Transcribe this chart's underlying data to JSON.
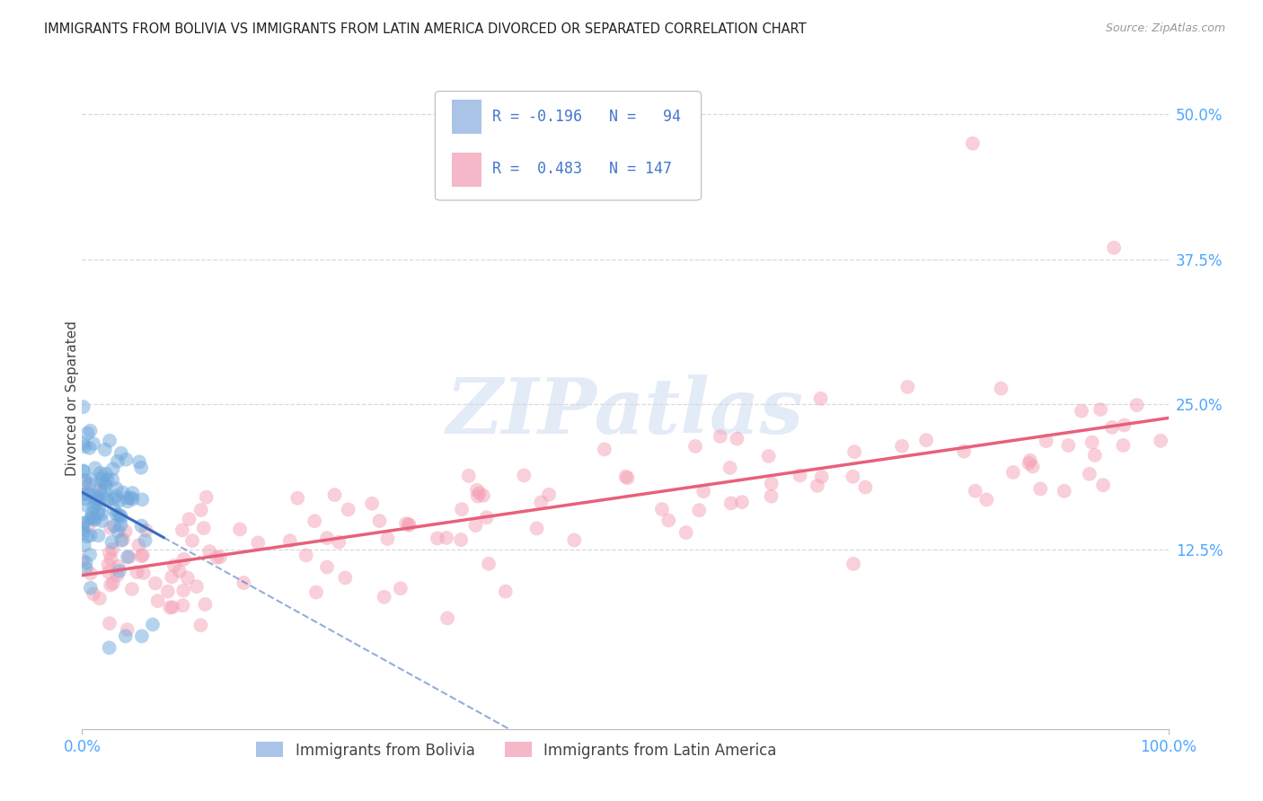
{
  "title": "IMMIGRANTS FROM BOLIVIA VS IMMIGRANTS FROM LATIN AMERICA DIVORCED OR SEPARATED CORRELATION CHART",
  "source": "Source: ZipAtlas.com",
  "ylabel": "Divorced or Separated",
  "series1_color": "#6fa8dc",
  "series2_color": "#f4a0b5",
  "legend1_color": "#aac4e8",
  "legend2_color": "#f4b8c8",
  "trendline1_color": "#3a6bbf",
  "trendline2_color": "#e8607a",
  "watermark_color": "#c8d8f0",
  "background": "#ffffff",
  "grid_color": "#d0d0d0",
  "xlim": [
    0.0,
    1.0
  ],
  "ylim": [
    -0.03,
    0.54
  ],
  "tick_label_color": "#4da6ff",
  "title_color": "#222222",
  "source_color": "#999999",
  "ylabel_color": "#444444",
  "legend_text_color": "#4477cc",
  "bottom_legend_color": "#444444",
  "trendline1_intercept": 0.17,
  "trendline1_slope": -0.22,
  "trendline2_intercept": 0.108,
  "trendline2_slope": 0.115
}
